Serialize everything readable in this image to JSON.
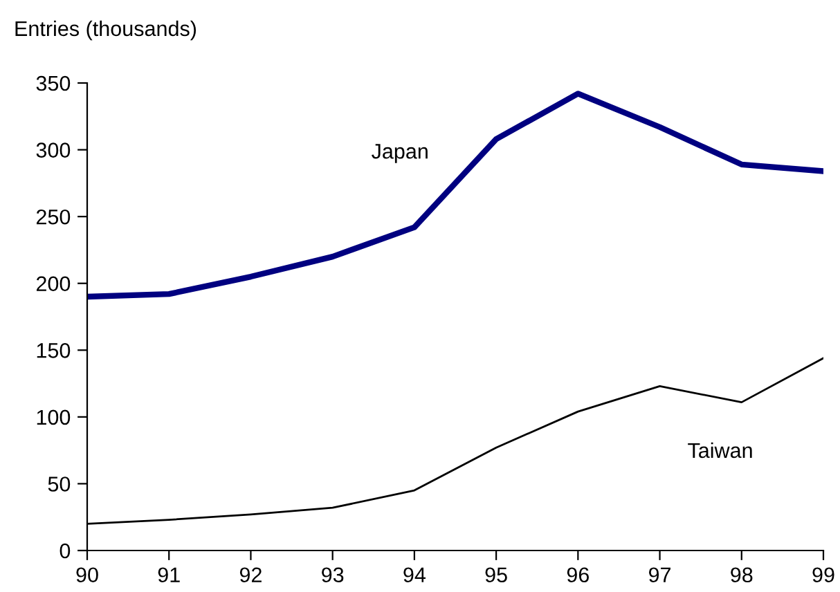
{
  "chart_data": {
    "type": "line",
    "ylabel": "Entries (thousands)",
    "x": [
      90,
      91,
      92,
      93,
      94,
      95,
      96,
      97,
      98,
      99
    ],
    "series": [
      {
        "name": "Japan",
        "color": "#000080",
        "values": [
          190,
          192,
          205,
          220,
          242,
          308,
          342,
          317,
          289,
          284
        ]
      },
      {
        "name": "Taiwan",
        "color": "#000000",
        "values": [
          20,
          23,
          27,
          32,
          45,
          77,
          104,
          123,
          111,
          144
        ]
      }
    ],
    "xlim": [
      90,
      99
    ],
    "xticks": [
      90,
      91,
      92,
      93,
      94,
      95,
      96,
      97,
      98,
      99
    ],
    "ylim": [
      0,
      350
    ],
    "yticks": [
      0,
      50,
      100,
      150,
      200,
      250,
      300,
      350
    ],
    "grid": false,
    "legend": false,
    "marker": "none",
    "line_style": "solid"
  }
}
